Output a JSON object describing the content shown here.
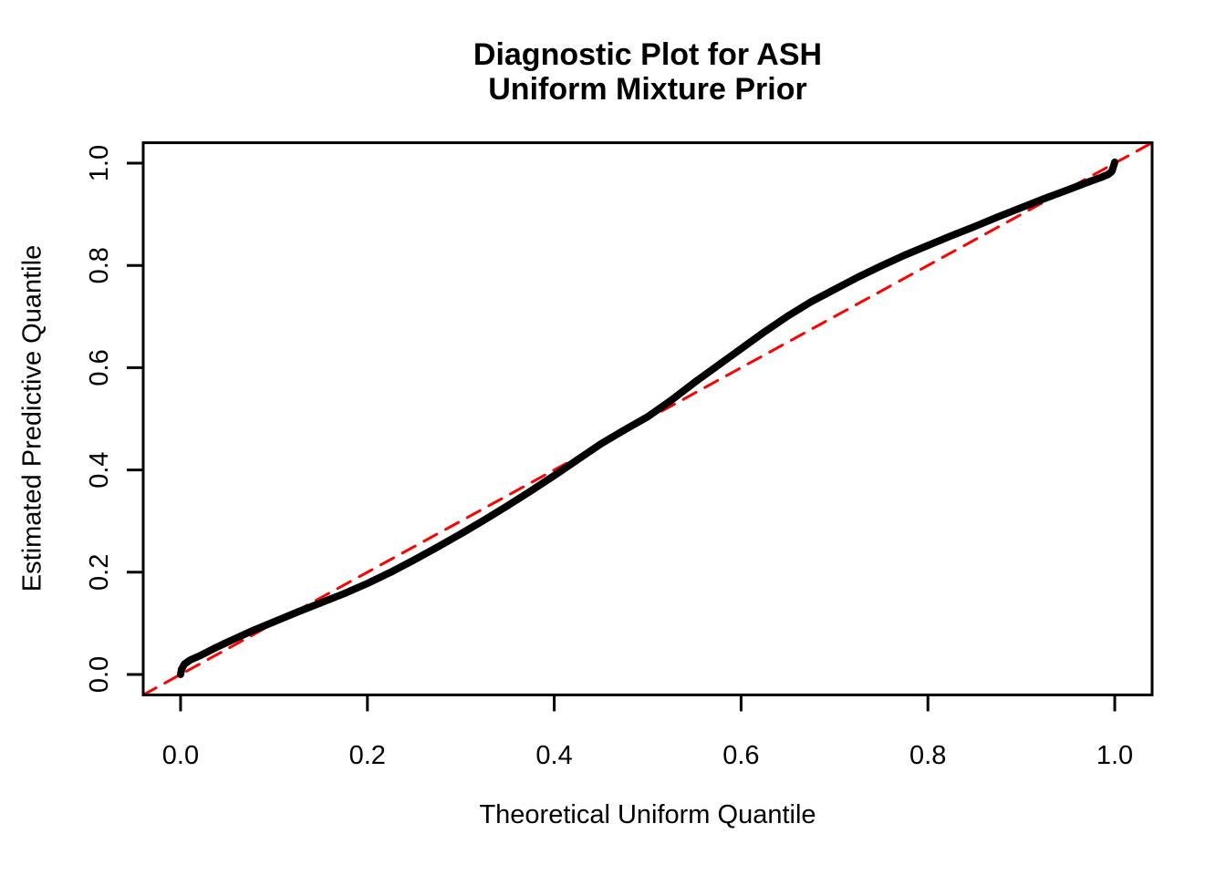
{
  "chart_data": {
    "type": "line",
    "title_lines": [
      "Diagnostic Plot for ASH",
      "Uniform Mixture Prior"
    ],
    "xlabel": "Theoretical Uniform Quantile",
    "ylabel": "Estimated Predictive Quantile",
    "xlim": [
      -0.04,
      1.04
    ],
    "ylim": [
      -0.04,
      1.04
    ],
    "x_ticks": [
      0.0,
      0.2,
      0.4,
      0.6,
      0.8,
      1.0
    ],
    "y_ticks": [
      0.0,
      0.2,
      0.4,
      0.6,
      0.8,
      1.0
    ],
    "x_tick_labels": [
      "0.0",
      "0.2",
      "0.4",
      "0.6",
      "0.8",
      "1.0"
    ],
    "y_tick_labels": [
      "0.0",
      "0.2",
      "0.4",
      "0.6",
      "0.8",
      "1.0"
    ],
    "grid": false,
    "legend": null,
    "series": [
      {
        "name": "reference-line-y-equals-x",
        "type": "line",
        "style": "dashed",
        "color": "#ff0000",
        "line_width": 3,
        "x": [
          -0.04,
          1.04
        ],
        "y": [
          -0.04,
          1.04
        ]
      },
      {
        "name": "estimated-predictive-quantile-curve",
        "type": "line",
        "style": "solid",
        "color": "#000000",
        "line_width": 8,
        "x": [
          0.0,
          0.001,
          0.004,
          0.01,
          0.02,
          0.035,
          0.05,
          0.075,
          0.1,
          0.125,
          0.15,
          0.175,
          0.2,
          0.225,
          0.25,
          0.275,
          0.3,
          0.325,
          0.35,
          0.375,
          0.4,
          0.425,
          0.45,
          0.475,
          0.5,
          0.525,
          0.55,
          0.575,
          0.6,
          0.625,
          0.65,
          0.675,
          0.7,
          0.725,
          0.75,
          0.775,
          0.8,
          0.825,
          0.85,
          0.875,
          0.9,
          0.925,
          0.95,
          0.97,
          0.985,
          0.993,
          0.997,
          1.0
        ],
        "y": [
          0.0,
          0.01,
          0.02,
          0.028,
          0.036,
          0.05,
          0.063,
          0.084,
          0.103,
          0.122,
          0.14,
          0.158,
          0.178,
          0.2,
          0.224,
          0.249,
          0.275,
          0.302,
          0.33,
          0.359,
          0.389,
          0.42,
          0.451,
          0.478,
          0.504,
          0.536,
          0.571,
          0.604,
          0.637,
          0.67,
          0.701,
          0.729,
          0.753,
          0.777,
          0.799,
          0.82,
          0.839,
          0.858,
          0.876,
          0.895,
          0.913,
          0.931,
          0.948,
          0.962,
          0.972,
          0.978,
          0.984,
          1.002
        ]
      }
    ]
  },
  "colors": {
    "background": "#ffffff",
    "axis": "#000000",
    "curve": "#000000",
    "reference_line": "#ff0000"
  }
}
